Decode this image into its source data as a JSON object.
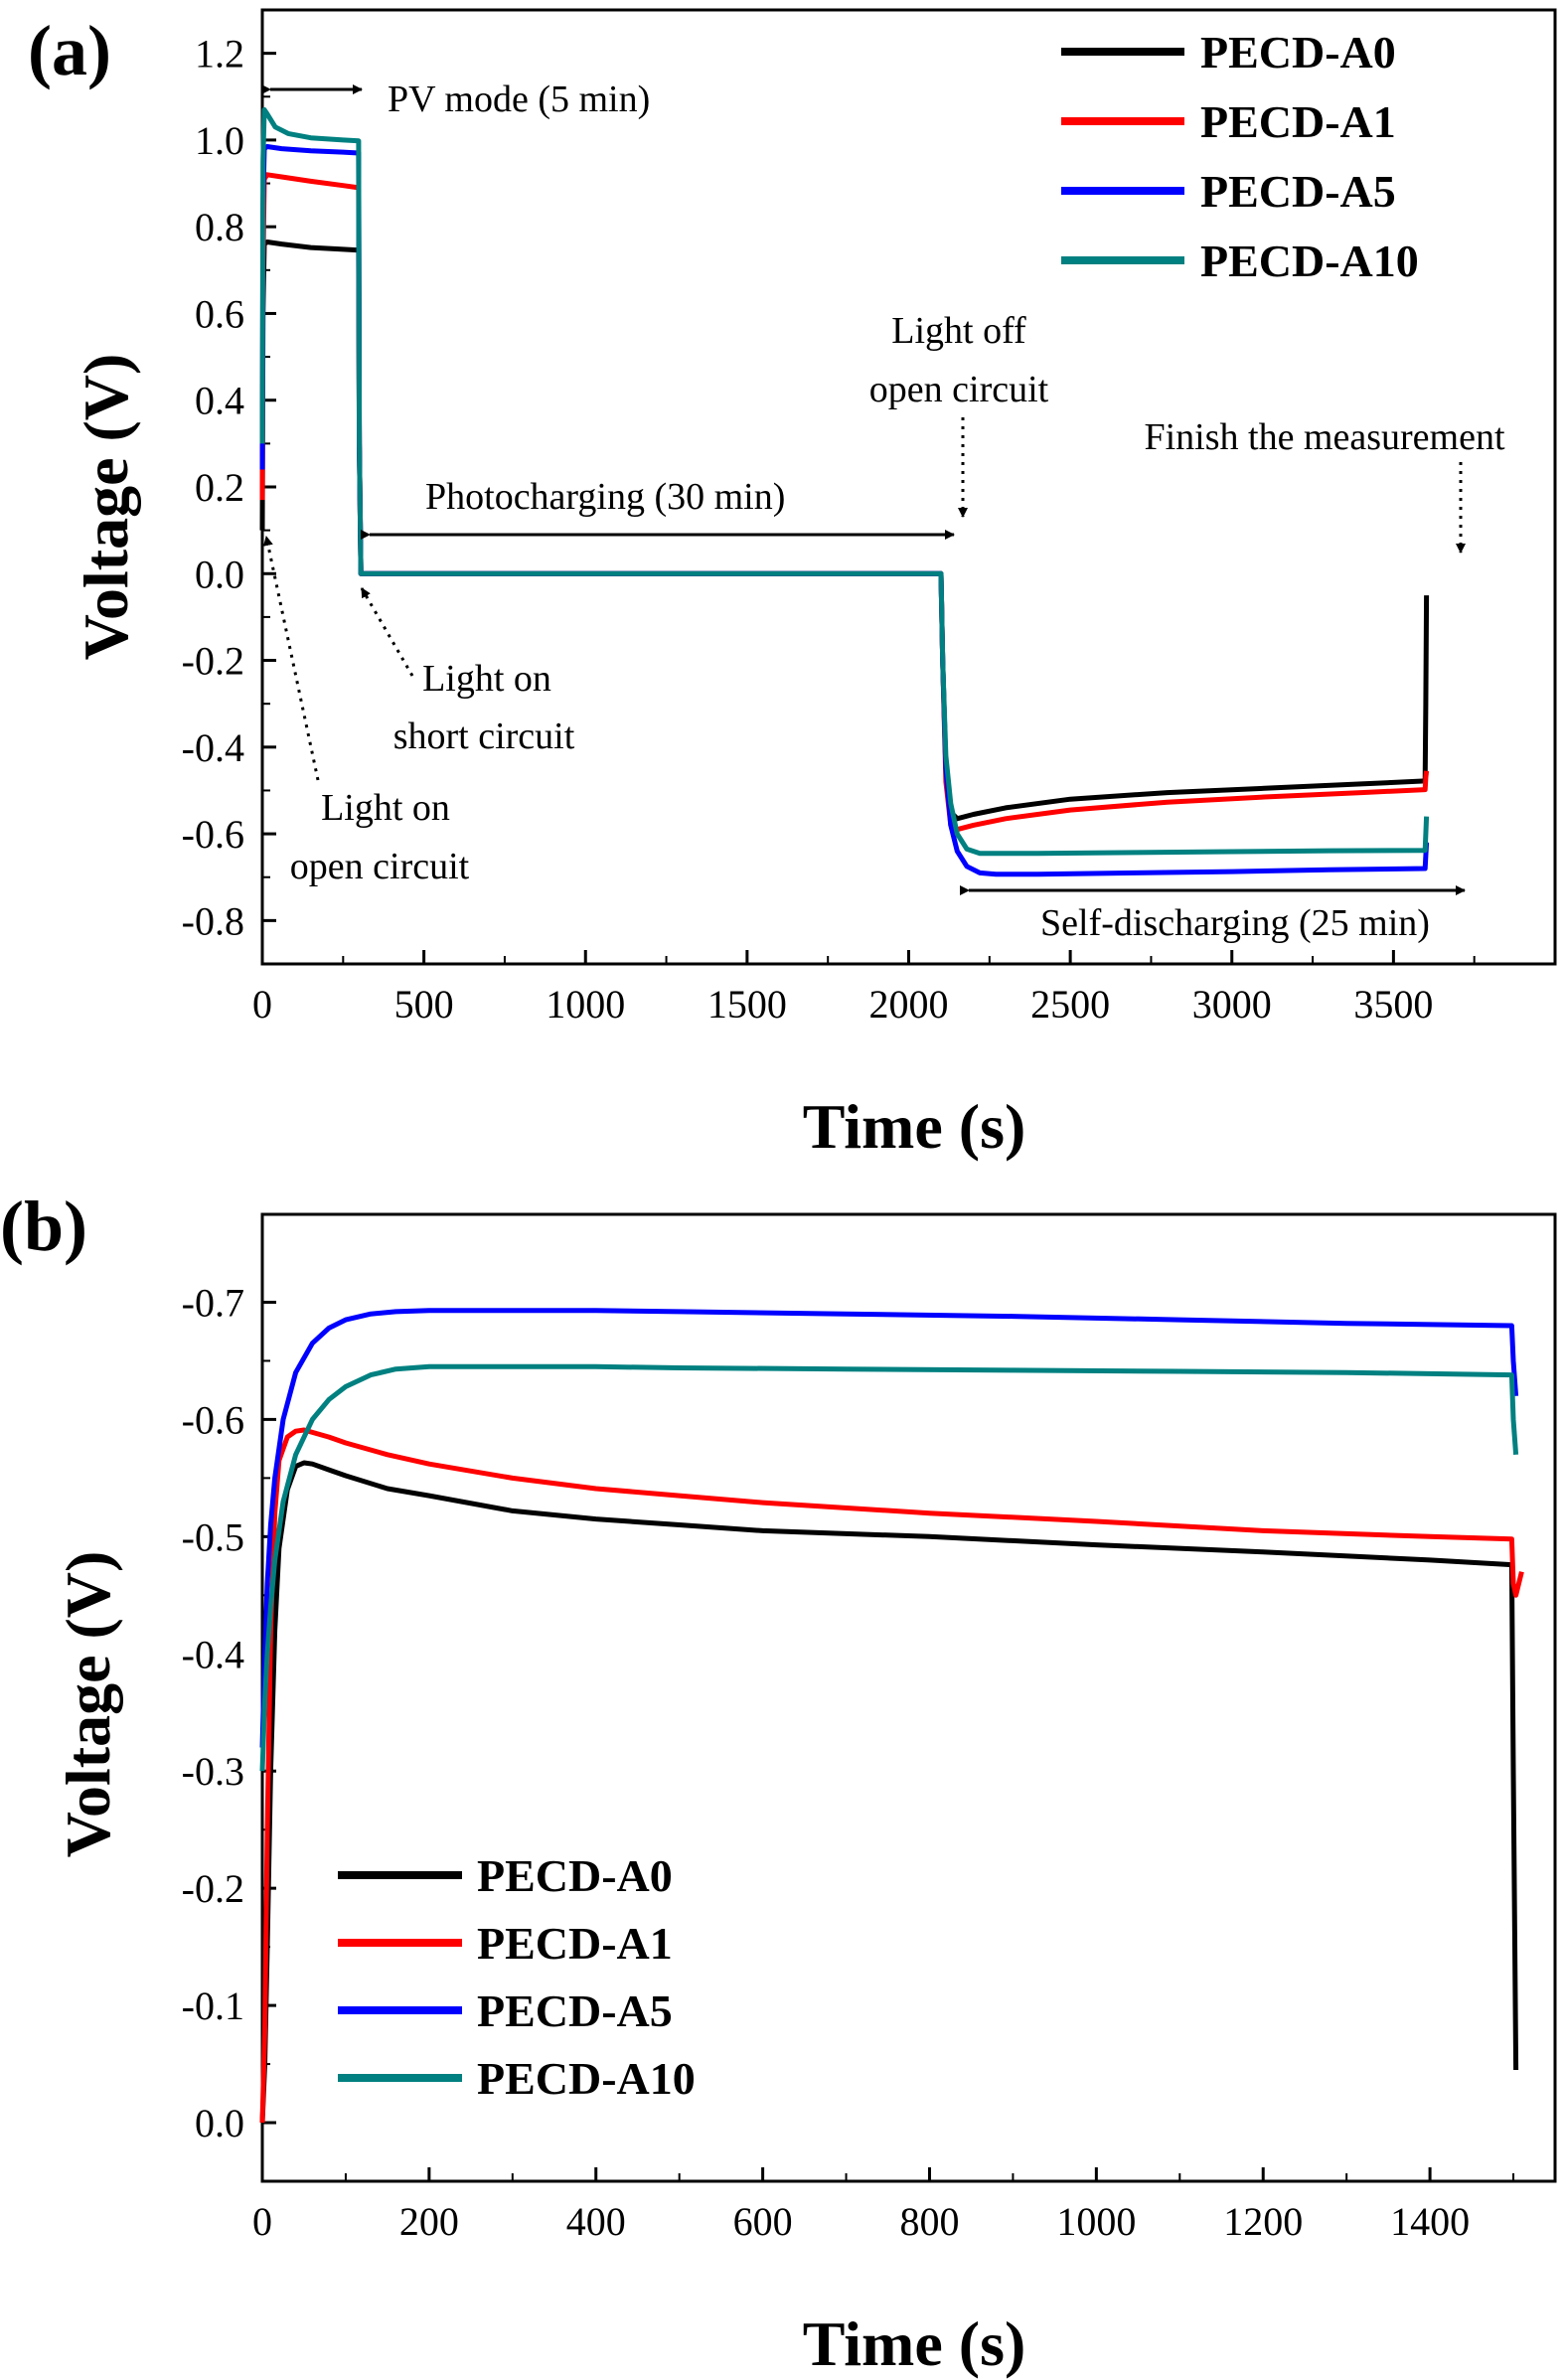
{
  "chart_data": [
    {
      "panel": "(a)",
      "type": "line",
      "xlabel": "Time (s)",
      "ylabel": "Voltage (V)",
      "xlim": [
        0,
        4000
      ],
      "ylim": [
        -0.9,
        1.3
      ],
      "xticks": [
        "0",
        "500",
        "1000",
        "1500",
        "2000",
        "2500",
        "3000",
        "3500"
      ],
      "yticks": [
        "-0.8",
        "-0.6",
        "-0.4",
        "-0.2",
        "0.0",
        "0.2",
        "0.4",
        "0.6",
        "0.8",
        "1.0",
        "1.2"
      ],
      "legend_position": "top-right",
      "grid": false,
      "series": [
        {
          "name": "PECD-A0",
          "color": "#000000",
          "x": [
            0,
            2,
            6,
            15,
            60,
            150,
            250,
            298,
            300,
            305,
            1000,
            2100,
            2105,
            2115,
            2130,
            2150,
            2200,
            2300,
            2500,
            2800,
            3100,
            3400,
            3598,
            3600,
            3602
          ],
          "y": [
            0.1,
            0.6,
            0.76,
            0.765,
            0.76,
            0.752,
            0.748,
            0.746,
            0.3,
            0.0,
            0.0,
            0.0,
            -0.2,
            -0.45,
            -0.55,
            -0.565,
            -0.555,
            -0.54,
            -0.52,
            -0.505,
            -0.495,
            -0.485,
            -0.478,
            -0.3,
            -0.05
          ]
        },
        {
          "name": "PECD-A1",
          "color": "#ff0000",
          "x": [
            0,
            2,
            6,
            15,
            60,
            150,
            250,
            298,
            300,
            305,
            1000,
            2100,
            2105,
            2115,
            2130,
            2150,
            2200,
            2300,
            2500,
            2800,
            3100,
            3400,
            3598,
            3600,
            3602
          ],
          "y": [
            0.17,
            0.7,
            0.91,
            0.92,
            0.915,
            0.905,
            0.895,
            0.89,
            0.3,
            0.0,
            0.0,
            0.0,
            -0.2,
            -0.48,
            -0.58,
            -0.59,
            -0.58,
            -0.565,
            -0.545,
            -0.527,
            -0.515,
            -0.505,
            -0.498,
            -0.47,
            -0.455
          ]
        },
        {
          "name": "PECD-A5",
          "color": "#0000ff",
          "x": [
            0,
            2,
            6,
            15,
            60,
            150,
            250,
            298,
            300,
            305,
            1000,
            2100,
            2105,
            2115,
            2130,
            2150,
            2180,
            2220,
            2270,
            2400,
            2700,
            3000,
            3300,
            3598,
            3600,
            3602
          ],
          "y": [
            0.24,
            0.85,
            0.98,
            0.985,
            0.98,
            0.975,
            0.972,
            0.97,
            0.3,
            0.0,
            0.0,
            0.0,
            -0.2,
            -0.45,
            -0.58,
            -0.64,
            -0.675,
            -0.69,
            -0.693,
            -0.693,
            -0.69,
            -0.687,
            -0.683,
            -0.68,
            -0.65,
            -0.62
          ]
        },
        {
          "name": "PECD-A10",
          "color": "#008080",
          "x": [
            0,
            2,
            6,
            15,
            40,
            80,
            150,
            250,
            298,
            300,
            305,
            1000,
            2100,
            2105,
            2115,
            2130,
            2150,
            2180,
            2220,
            2270,
            2400,
            2700,
            3000,
            3300,
            3598,
            3600,
            3602
          ],
          "y": [
            0.3,
            0.95,
            1.07,
            1.06,
            1.03,
            1.015,
            1.005,
            1.0,
            0.998,
            0.3,
            0.0,
            0.0,
            0.0,
            -0.2,
            -0.42,
            -0.53,
            -0.6,
            -0.635,
            -0.645,
            -0.645,
            -0.645,
            -0.643,
            -0.641,
            -0.639,
            -0.638,
            -0.6,
            -0.56
          ]
        }
      ],
      "annotations": [
        {
          "text": "PV mode (5 min)"
        },
        {
          "text": "Photocharging (30 min)"
        },
        {
          "text": "Light off",
          "text2": "open circuit"
        },
        {
          "text": "Finish the measurement"
        },
        {
          "text": "Light on",
          "text2": "short circuit"
        },
        {
          "text": "Light on",
          "text2": "open circuit"
        },
        {
          "text": "Self-discharging (25 min)"
        }
      ]
    },
    {
      "panel": "(b)",
      "type": "line",
      "xlabel": "Time (s)",
      "ylabel": "Voltage (V)",
      "xlim": [
        0,
        1550
      ],
      "ylim": [
        0.05,
        -0.775
      ],
      "y_axis_inverted": true,
      "xticks": [
        "0",
        "200",
        "400",
        "600",
        "800",
        "1000",
        "1200",
        "1400"
      ],
      "yticks": [
        "0.0",
        "-0.1",
        "-0.2",
        "-0.3",
        "-0.4",
        "-0.5",
        "-0.6",
        "-0.7"
      ],
      "legend_position": "bottom-left",
      "grid": false,
      "series": [
        {
          "name": "PECD-A0",
          "color": "#000000",
          "x": [
            0,
            3,
            6,
            10,
            15,
            20,
            30,
            40,
            50,
            60,
            80,
            100,
            150,
            200,
            300,
            400,
            500,
            600,
            800,
            1000,
            1200,
            1400,
            1498,
            1500,
            1503
          ],
          "y": [
            0.0,
            -0.05,
            -0.15,
            -0.3,
            -0.42,
            -0.49,
            -0.54,
            -0.56,
            -0.563,
            -0.562,
            -0.557,
            -0.552,
            -0.541,
            -0.535,
            -0.522,
            -0.515,
            -0.51,
            -0.505,
            -0.5,
            -0.493,
            -0.487,
            -0.48,
            -0.476,
            -0.3,
            -0.045
          ]
        },
        {
          "name": "PECD-A1",
          "color": "#ff0000",
          "x": [
            0,
            3,
            6,
            10,
            15,
            20,
            30,
            40,
            50,
            60,
            80,
            100,
            150,
            200,
            300,
            400,
            500,
            600,
            800,
            1000,
            1200,
            1400,
            1498,
            1500,
            1503,
            1510
          ],
          "y": [
            0.0,
            -0.08,
            -0.25,
            -0.42,
            -0.52,
            -0.565,
            -0.585,
            -0.59,
            -0.591,
            -0.589,
            -0.585,
            -0.58,
            -0.57,
            -0.562,
            -0.55,
            -0.541,
            -0.535,
            -0.529,
            -0.52,
            -0.513,
            -0.505,
            -0.5,
            -0.498,
            -0.46,
            -0.45,
            -0.47
          ]
        },
        {
          "name": "PECD-A5",
          "color": "#0000ff",
          "x": [
            0,
            3,
            6,
            10,
            15,
            25,
            40,
            60,
            80,
            100,
            130,
            160,
            200,
            300,
            400,
            500,
            700,
            900,
            1100,
            1300,
            1498,
            1500,
            1503
          ],
          "y": [
            -0.32,
            -0.4,
            -0.46,
            -0.51,
            -0.55,
            -0.6,
            -0.64,
            -0.665,
            -0.678,
            -0.685,
            -0.69,
            -0.692,
            -0.693,
            -0.693,
            -0.693,
            -0.692,
            -0.69,
            -0.688,
            -0.685,
            -0.682,
            -0.68,
            -0.65,
            -0.62
          ]
        },
        {
          "name": "PECD-A10",
          "color": "#008080",
          "x": [
            0,
            3,
            6,
            10,
            15,
            25,
            40,
            60,
            80,
            100,
            130,
            160,
            200,
            300,
            400,
            500,
            700,
            900,
            1100,
            1300,
            1498,
            1500,
            1503
          ],
          "y": [
            -0.3,
            -0.36,
            -0.4,
            -0.44,
            -0.48,
            -0.53,
            -0.57,
            -0.6,
            -0.617,
            -0.628,
            -0.638,
            -0.643,
            -0.645,
            -0.645,
            -0.645,
            -0.644,
            -0.643,
            -0.642,
            -0.641,
            -0.64,
            -0.638,
            -0.6,
            -0.57
          ]
        }
      ]
    }
  ]
}
